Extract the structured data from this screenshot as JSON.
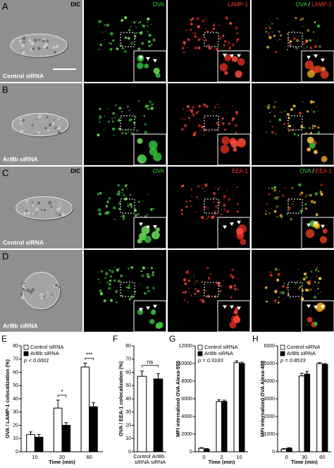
{
  "figure": {
    "rows": [
      {
        "letter": "A",
        "label": "Control siRNA",
        "headers": {
          "dic": "DIC",
          "green": "OVA",
          "red": "LAMP-1",
          "merge_green": "OVA",
          "merge_sep": "/",
          "merge_red": "LAMP-1"
        }
      },
      {
        "letter": "B",
        "label": "Arl8b siRNA"
      },
      {
        "letter": "C",
        "label": "Control siRNA",
        "headers": {
          "dic": "DIC",
          "green": "OVA",
          "red": "EEA-1",
          "merge_green": "OVA",
          "merge_sep": "/",
          "merge_red": "EEA-1"
        }
      },
      {
        "letter": "D",
        "label": "Arl8b siRNA"
      }
    ]
  },
  "chart_data": [
    {
      "type": "bar",
      "panel_label": "E",
      "y_label": "OVA / LAMP-1 colocalization (%)",
      "x_label": "Time (min)",
      "categories": [
        "10",
        "20",
        "60"
      ],
      "series": [
        {
          "name": "Control siRNA",
          "color": "#ffffff",
          "values": [
            13,
            33,
            64
          ],
          "errors": [
            2,
            6,
            3
          ]
        },
        {
          "name": "Arl8b siRNA",
          "color": "#000000",
          "values": [
            11,
            20,
            34
          ],
          "errors": [
            2,
            2,
            3
          ]
        }
      ],
      "ylim": [
        0,
        80
      ],
      "yticks": [
        0,
        10,
        20,
        30,
        40,
        50,
        60,
        70,
        80
      ],
      "annotation": "p < 0.0001",
      "significance": [
        null,
        "*",
        "***"
      ]
    },
    {
      "type": "bar",
      "panel_label": "F",
      "y_label": "OVA / EEA-1 colocalization (%)",
      "categories": [
        "Control siRNA",
        "Arl8b siRNA"
      ],
      "values": [
        57,
        55
      ],
      "errors": [
        4,
        4
      ],
      "colors": [
        "#ffffff",
        "#000000"
      ],
      "ylim": [
        0,
        80
      ],
      "yticks": [
        0,
        10,
        20,
        30,
        40,
        50,
        60,
        70,
        80
      ],
      "significance": "ns"
    },
    {
      "type": "bar",
      "panel_label": "G",
      "y_label": "MFI internalized OVA Alexa-555",
      "x_label": "Time (min)",
      "categories": [
        "0",
        "2",
        "10"
      ],
      "series": [
        {
          "name": "Control siRNA",
          "color": "#ffffff",
          "values": [
            400,
            5700,
            10100
          ],
          "errors": [
            60,
            200,
            200
          ]
        },
        {
          "name": "Arl8b siRNA",
          "color": "#000000",
          "values": [
            300,
            5700,
            10000
          ],
          "errors": [
            60,
            150,
            150
          ]
        }
      ],
      "ylim": [
        0,
        12000
      ],
      "yticks": [
        0,
        2000,
        4000,
        6000,
        8000,
        10000,
        12000
      ],
      "annotation": "p = 0.9183"
    },
    {
      "type": "bar",
      "panel_label": "H",
      "y_label": "MFI internalized OVA Alexa-488",
      "x_label": "Time (min)",
      "categories": [
        "0",
        "30",
        "60"
      ],
      "series": [
        {
          "name": "Control siRNA",
          "color": "#ffffff",
          "values": [
            150,
            4300,
            5000
          ],
          "errors": [
            30,
            150,
            50
          ]
        },
        {
          "name": "Arl8b siRNA",
          "color": "#000000",
          "values": [
            200,
            4400,
            4950
          ],
          "errors": [
            30,
            150,
            50
          ]
        }
      ],
      "ylim": [
        0,
        6000
      ],
      "yticks": [
        0,
        1000,
        2000,
        3000,
        4000,
        5000,
        6000
      ],
      "annotation": "p = 0.8533"
    }
  ]
}
